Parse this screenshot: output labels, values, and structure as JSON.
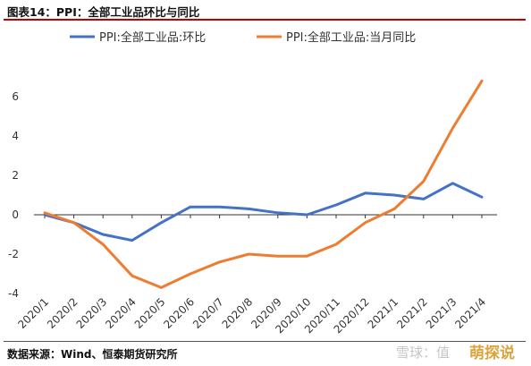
{
  "header": {
    "title": "图表14：PPI：全部工业品环比与同比"
  },
  "footer": {
    "source": "数据来源：Wind、恒泰期货研究所"
  },
  "watermark": {
    "text": "雪球：值",
    "brand": "萌探说"
  },
  "chart_data": {
    "type": "line",
    "title": "",
    "xlabel": "",
    "ylabel": "",
    "ylim": [
      -4,
      7
    ],
    "yticks": [
      -4,
      -2,
      0,
      2,
      4,
      6
    ],
    "grid": false,
    "legend_position": "top",
    "categories": [
      "2020/1",
      "2020/2",
      "2020/3",
      "2020/4",
      "2020/5",
      "2020/6",
      "2020/7",
      "2020/8",
      "2020/9",
      "2020/10",
      "2020/11",
      "2020/12",
      "2021/1",
      "2021/2",
      "2021/3",
      "2021/4"
    ],
    "series": [
      {
        "name": "PPI:全部工业品:环比",
        "color": "#4472c4",
        "values": [
          0.0,
          -0.4,
          -1.0,
          -1.3,
          -0.4,
          0.4,
          0.4,
          0.3,
          0.1,
          0.0,
          0.5,
          1.1,
          1.0,
          0.8,
          1.6,
          0.9
        ]
      },
      {
        "name": "PPI:全部工业品:当月同比",
        "color": "#ed7d31",
        "values": [
          0.1,
          -0.4,
          -1.5,
          -3.1,
          -3.7,
          -3.0,
          -2.4,
          -2.0,
          -2.1,
          -2.1,
          -1.5,
          -0.4,
          0.3,
          1.7,
          4.4,
          6.8
        ]
      }
    ]
  }
}
